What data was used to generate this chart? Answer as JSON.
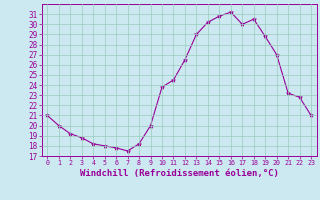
{
  "x": [
    0,
    1,
    2,
    3,
    4,
    5,
    6,
    7,
    8,
    9,
    10,
    11,
    12,
    13,
    14,
    15,
    16,
    17,
    18,
    19,
    20,
    21,
    22,
    23
  ],
  "y": [
    21.0,
    20.0,
    19.2,
    18.8,
    18.2,
    18.0,
    17.8,
    17.5,
    18.2,
    20.0,
    23.8,
    24.5,
    26.5,
    29.0,
    30.2,
    30.8,
    31.2,
    30.0,
    30.5,
    28.8,
    27.0,
    23.2,
    22.8,
    21.0
  ],
  "xlim": [
    -0.5,
    23.5
  ],
  "ylim": [
    17,
    32
  ],
  "yticks": [
    17,
    18,
    19,
    20,
    21,
    22,
    23,
    24,
    25,
    26,
    27,
    28,
    29,
    30,
    31
  ],
  "xticks": [
    0,
    1,
    2,
    3,
    4,
    5,
    6,
    7,
    8,
    9,
    10,
    11,
    12,
    13,
    14,
    15,
    16,
    17,
    18,
    19,
    20,
    21,
    22,
    23
  ],
  "line_color": "#990099",
  "marker": "*",
  "marker_size": 3,
  "bg_color": "#cce8f0",
  "grid_color": "#99ccbb",
  "xlabel": "Windchill (Refroidissement éolien,°C)",
  "xlabel_color": "#990099",
  "tick_color": "#990099",
  "spine_color": "#990099",
  "figsize": [
    3.2,
    2.0
  ],
  "dpi": 100,
  "xlabel_fontsize": 6.5,
  "ytick_fontsize": 5.5,
  "xtick_fontsize": 4.8
}
